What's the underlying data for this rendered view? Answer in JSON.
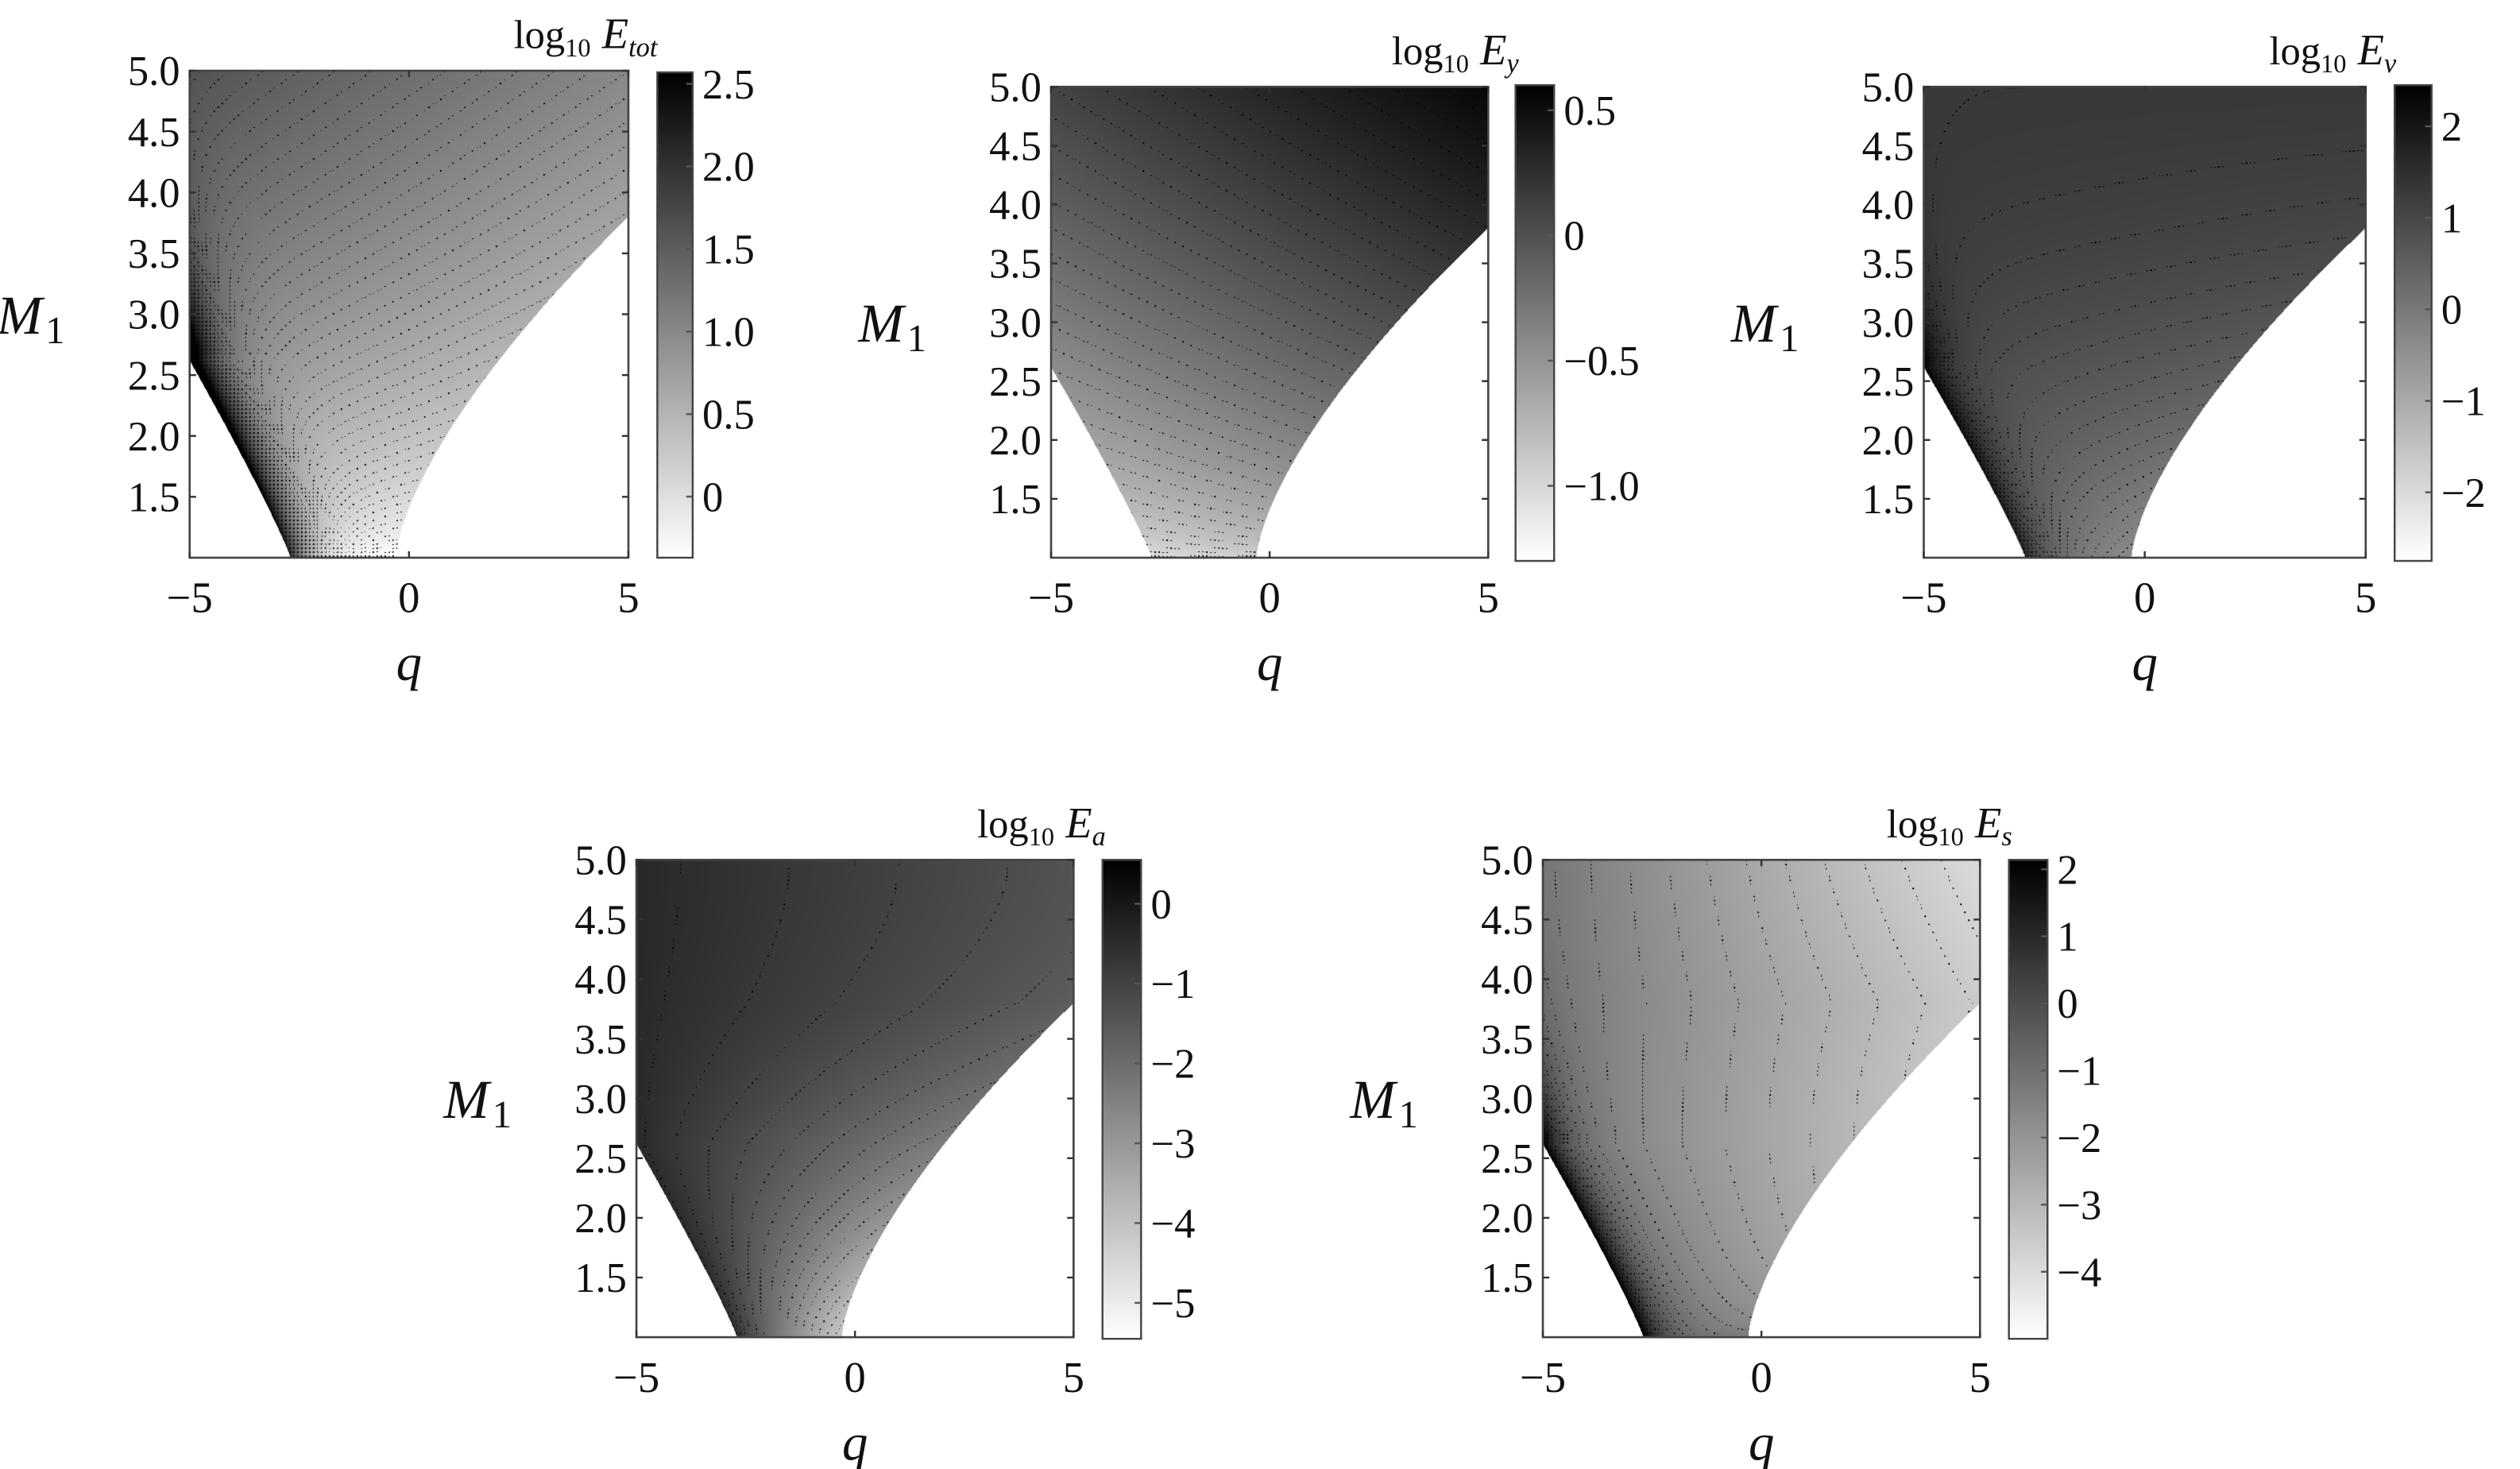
{
  "chart_data": [
    {
      "type": "contour",
      "title": {
        "log": "log",
        "base": "10",
        "var": "E",
        "sub": "tot"
      },
      "xlabel": "q",
      "ylabel": {
        "var": "M",
        "sub": "1"
      },
      "xlim": [
        -5,
        5
      ],
      "ylim": [
        1.0,
        5.0
      ],
      "xticks": [
        -5,
        0,
        5
      ],
      "xtick_labels": [
        "−5",
        "0",
        "5"
      ],
      "yticks": [
        1.5,
        2.0,
        2.5,
        3.0,
        3.5,
        4.0,
        4.5,
        5.0
      ],
      "ytick_labels": [
        "1.5",
        "2.0",
        "2.5",
        "3.0",
        "3.5",
        "4.0",
        "4.5",
        "5.0"
      ],
      "colorbar": {
        "range": [
          -0.37,
          2.57
        ],
        "ticks": [
          2.5,
          2.0,
          1.5,
          1.0,
          0.5,
          0
        ],
        "tick_labels": [
          "2.5",
          "2.0",
          "1.5",
          "1.0",
          "0.5",
          "0"
        ],
        "colormap": "white-to-black"
      },
      "contour_interval": 0.05,
      "contour_style": "dotted",
      "valid_region": {
        "left_boundary": [
          [
            -5,
            2.62
          ],
          [
            -2.7,
            1.0
          ]
        ],
        "right_boundary": [
          [
            -0.3,
            1.0
          ],
          [
            5,
            3.8
          ]
        ]
      }
    },
    {
      "type": "contour",
      "title": {
        "log": "log",
        "base": "10",
        "var": "E",
        "sub": "y"
      },
      "xlabel": "q",
      "ylabel": {
        "var": "M",
        "sub": "1"
      },
      "xlim": [
        -5,
        5
      ],
      "ylim": [
        1.0,
        5.0
      ],
      "xticks": [
        -5,
        0,
        5
      ],
      "xtick_labels": [
        "−5",
        "0",
        "5"
      ],
      "yticks": [
        1.5,
        2.0,
        2.5,
        3.0,
        3.5,
        4.0,
        4.5,
        5.0
      ],
      "ytick_labels": [
        "1.5",
        "2.0",
        "2.5",
        "3.0",
        "3.5",
        "4.0",
        "4.5",
        "5.0"
      ],
      "colorbar": {
        "range": [
          -1.3,
          0.6
        ],
        "ticks": [
          0.5,
          0,
          -0.5,
          -1.0
        ],
        "tick_labels": [
          "0.5",
          "0",
          "−0.5",
          "−1.0"
        ],
        "colormap": "white-to-black"
      },
      "contour_interval": 0.05,
      "contour_style": "dotted",
      "valid_region": {
        "left_boundary": [
          [
            -5,
            2.62
          ],
          [
            -2.7,
            1.0
          ]
        ],
        "right_boundary": [
          [
            -0.3,
            1.0
          ],
          [
            5,
            3.8
          ]
        ]
      }
    },
    {
      "type": "contour",
      "title": {
        "log": "log",
        "base": "10",
        "var": "E",
        "sub": "v"
      },
      "xlabel": "q",
      "ylabel": {
        "var": "M",
        "sub": "1"
      },
      "xlim": [
        -5,
        5
      ],
      "ylim": [
        1.0,
        5.0
      ],
      "xticks": [
        -5,
        0,
        5
      ],
      "xtick_labels": [
        "−5",
        "0",
        "5"
      ],
      "yticks": [
        1.5,
        2.0,
        2.5,
        3.0,
        3.5,
        4.0,
        4.5,
        5.0
      ],
      "ytick_labels": [
        "1.5",
        "2.0",
        "2.5",
        "3.0",
        "3.5",
        "4.0",
        "4.5",
        "5.0"
      ],
      "colorbar": {
        "range": [
          -2.75,
          2.45
        ],
        "ticks": [
          2,
          1,
          0,
          -1,
          -2
        ],
        "tick_labels": [
          "2",
          "1",
          "0",
          "−1",
          "−2"
        ],
        "colormap": "white-to-black"
      },
      "contour_interval": 0.1,
      "contour_style": "dotted",
      "valid_region": {
        "left_boundary": [
          [
            -5,
            2.62
          ],
          [
            -2.7,
            1.0
          ]
        ],
        "right_boundary": [
          [
            -0.3,
            1.0
          ],
          [
            5,
            3.8
          ]
        ]
      }
    },
    {
      "type": "contour",
      "title": {
        "log": "log",
        "base": "10",
        "var": "E",
        "sub": "a"
      },
      "xlabel": "q",
      "ylabel": {
        "var": "M",
        "sub": "1"
      },
      "xlim": [
        -5,
        5
      ],
      "ylim": [
        1.0,
        5.0
      ],
      "xticks": [
        -5,
        0,
        5
      ],
      "xtick_labels": [
        "−5",
        "0",
        "5"
      ],
      "yticks": [
        1.5,
        2.0,
        2.5,
        3.0,
        3.5,
        4.0,
        4.5,
        5.0
      ],
      "ytick_labels": [
        "1.5",
        "2.0",
        "2.5",
        "3.0",
        "3.5",
        "4.0",
        "4.5",
        "5.0"
      ],
      "colorbar": {
        "range": [
          -5.45,
          0.55
        ],
        "ticks": [
          0,
          -1,
          -2,
          -3,
          -4,
          -5
        ],
        "tick_labels": [
          "0",
          "−1",
          "−2",
          "−3",
          "−4",
          "−5"
        ],
        "colormap": "white-to-black"
      },
      "contour_interval": 0.25,
      "contour_style": "dotted",
      "valid_region": {
        "left_boundary": [
          [
            -5,
            2.62
          ],
          [
            -2.7,
            1.0
          ]
        ],
        "right_boundary": [
          [
            -0.3,
            1.0
          ],
          [
            5,
            3.8
          ]
        ]
      }
    },
    {
      "type": "contour",
      "title": {
        "log": "log",
        "base": "10",
        "var": "E",
        "sub": "s"
      },
      "xlabel": "q",
      "ylabel": {
        "var": "M",
        "sub": "1"
      },
      "xlim": [
        -5,
        5
      ],
      "ylim": [
        1.0,
        5.0
      ],
      "xticks": [
        -5,
        0,
        5
      ],
      "xtick_labels": [
        "−5",
        "0",
        "5"
      ],
      "yticks": [
        1.5,
        2.0,
        2.5,
        3.0,
        3.5,
        4.0,
        4.5,
        5.0
      ],
      "ytick_labels": [
        "1.5",
        "2.0",
        "2.5",
        "3.0",
        "3.5",
        "4.0",
        "4.5",
        "5.0"
      ],
      "colorbar": {
        "range": [
          -5.0,
          2.14
        ],
        "ticks": [
          2,
          1,
          0,
          -1,
          -2,
          -3,
          -4
        ],
        "tick_labels": [
          "2",
          "1",
          "0",
          "−1",
          "−2",
          "−3",
          "−4"
        ],
        "colormap": "white-to-black"
      },
      "contour_interval": 0.25,
      "contour_style": "dotted",
      "valid_region": {
        "left_boundary": [
          [
            -5,
            2.62
          ],
          [
            -2.7,
            1.0
          ]
        ],
        "right_boundary": [
          [
            -0.3,
            1.0
          ],
          [
            5,
            3.8
          ]
        ]
      }
    }
  ]
}
